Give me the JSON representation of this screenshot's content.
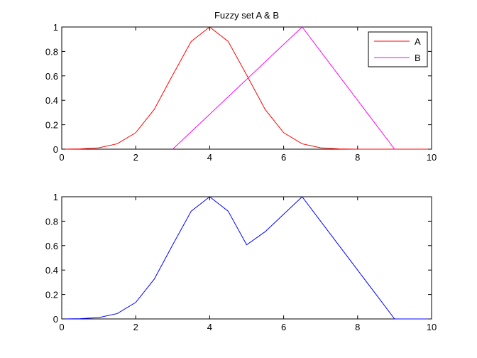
{
  "chart_data": [
    {
      "type": "line",
      "title": "Fuzzy set A & B",
      "xlim": [
        0,
        10
      ],
      "ylim": [
        0,
        1
      ],
      "xticks": [
        "0",
        "2",
        "4",
        "6",
        "8",
        "10"
      ],
      "yticks": [
        "0",
        "0.2",
        "0.4",
        "0.6",
        "0.8",
        "1"
      ],
      "grid": false,
      "legend": "top-right",
      "series": [
        {
          "name": "A",
          "color": "#ff0000",
          "x": [
            0,
            0.5,
            1,
            1.5,
            2,
            2.5,
            3,
            3.5,
            4,
            4.5,
            5,
            5.5,
            6,
            6.5,
            7,
            7.5,
            8,
            8.5,
            9,
            9.5,
            10
          ],
          "y": [
            0,
            0.002,
            0.011,
            0.044,
            0.135,
            0.325,
            0.607,
            0.882,
            1.0,
            0.882,
            0.607,
            0.325,
            0.135,
            0.044,
            0.011,
            0.002,
            0,
            0,
            0,
            0,
            0
          ]
        },
        {
          "name": "B",
          "color": "#ff00ff",
          "x": [
            3,
            6.5,
            9
          ],
          "y": [
            0,
            1,
            0
          ]
        }
      ]
    },
    {
      "type": "line",
      "title": "",
      "xlim": [
        0,
        10
      ],
      "ylim": [
        0,
        1
      ],
      "xticks": [
        "0",
        "2",
        "4",
        "6",
        "8",
        "10"
      ],
      "yticks": [
        "0",
        "0.2",
        "0.4",
        "0.6",
        "0.8",
        "1"
      ],
      "grid": false,
      "series": [
        {
          "color": "#0000ff",
          "x": [
            0,
            0.5,
            1,
            1.5,
            2,
            2.5,
            3,
            3.5,
            4,
            4.5,
            5,
            5.5,
            6,
            6.5,
            7,
            7.5,
            8,
            8.5,
            9,
            9.5,
            10
          ],
          "y": [
            0,
            0.002,
            0.011,
            0.044,
            0.135,
            0.325,
            0.607,
            0.882,
            1.0,
            0.882,
            0.607,
            0.714,
            0.857,
            1.0,
            0.8,
            0.6,
            0.4,
            0.2,
            0,
            0,
            0
          ]
        }
      ]
    }
  ]
}
